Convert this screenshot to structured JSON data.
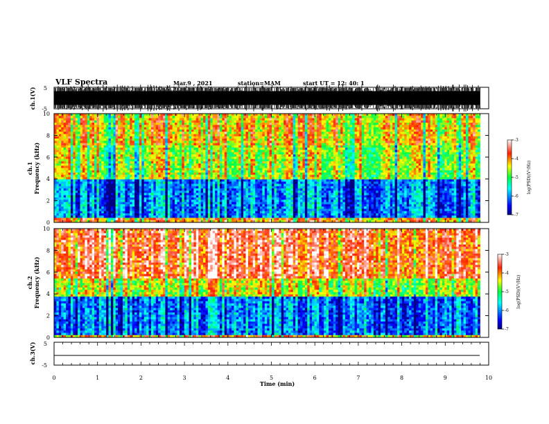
{
  "header": {
    "title": "VLF Spectra",
    "date": "Mar.9  , 2021",
    "station": "station=MAM",
    "start_ut": "start  UT  =   12: 40: 1"
  },
  "chart_data": [
    {
      "type": "line",
      "panel": "ch1-waveform",
      "ylabel": "ch.1(V)",
      "xlim": [
        0,
        10
      ],
      "ylim": [
        -5,
        5
      ],
      "yticks": [
        "5",
        "-5"
      ],
      "description_series": "dense impulsive amplitude trace spanning ±5 V",
      "color": "#000000"
    },
    {
      "type": "heatmap",
      "panel": "ch1-spectrogram",
      "ylabel_top": "ch.1",
      "ylabel": "Frequency  (kHz)",
      "xlim": [
        0,
        10
      ],
      "ylim": [
        0,
        10
      ],
      "yticks": [
        "0",
        "2",
        "4",
        "6",
        "8",
        "10"
      ],
      "data_extent_min": 9.8,
      "colorbar": {
        "label": "log(PSD)(V²/Hz)",
        "ticks": [
          "-3",
          "-4",
          "-5",
          "-6",
          "-7"
        ],
        "range": [
          -7,
          -3
        ]
      },
      "band_profile": [
        {
          "freq_khz": [
            0,
            0.4
          ],
          "log_psd": -4.0
        },
        {
          "freq_khz": [
            0.4,
            4.0
          ],
          "log_psd": -6.0
        },
        {
          "freq_khz": [
            4.0,
            7.0
          ],
          "log_psd": -4.6
        },
        {
          "freq_khz": [
            7.0,
            10.0
          ],
          "log_psd": -4.2
        }
      ]
    },
    {
      "type": "heatmap",
      "panel": "ch2-spectrogram",
      "ylabel_top": "ch.2",
      "ylabel": "Frequency  (kHz)",
      "xlim": [
        0,
        10
      ],
      "ylim": [
        0,
        10
      ],
      "yticks": [
        "0",
        "2",
        "4",
        "6",
        "8",
        "10"
      ],
      "data_extent_min": 9.8,
      "colorbar": {
        "label": "log(PSD)(V²/Hz)",
        "ticks": [
          "-3",
          "-4",
          "-5",
          "-6",
          "-7"
        ],
        "range": [
          -7,
          -3
        ]
      },
      "band_profile": [
        {
          "freq_khz": [
            0,
            0.3
          ],
          "log_psd": -4.0
        },
        {
          "freq_khz": [
            0.3,
            3.8
          ],
          "log_psd": -6.0
        },
        {
          "freq_khz": [
            3.8,
            5.5
          ],
          "log_psd": -4.4
        },
        {
          "freq_khz": [
            5.5,
            10.0
          ],
          "log_psd": -3.5
        }
      ]
    },
    {
      "type": "line",
      "panel": "ch3-waveform",
      "ylabel": "ch.3(V)",
      "xlim": [
        0,
        10
      ],
      "ylim": [
        -5,
        5
      ],
      "yticks": [
        "5",
        "-5"
      ],
      "x": [
        0,
        9.8
      ],
      "y": [
        -1.5,
        -1.5
      ],
      "color": "#000000"
    }
  ],
  "xaxis": {
    "label": "Time  (min)",
    "ticks": [
      "0",
      "1",
      "2",
      "3",
      "4",
      "5",
      "6",
      "7",
      "8",
      "9",
      "10"
    ]
  }
}
